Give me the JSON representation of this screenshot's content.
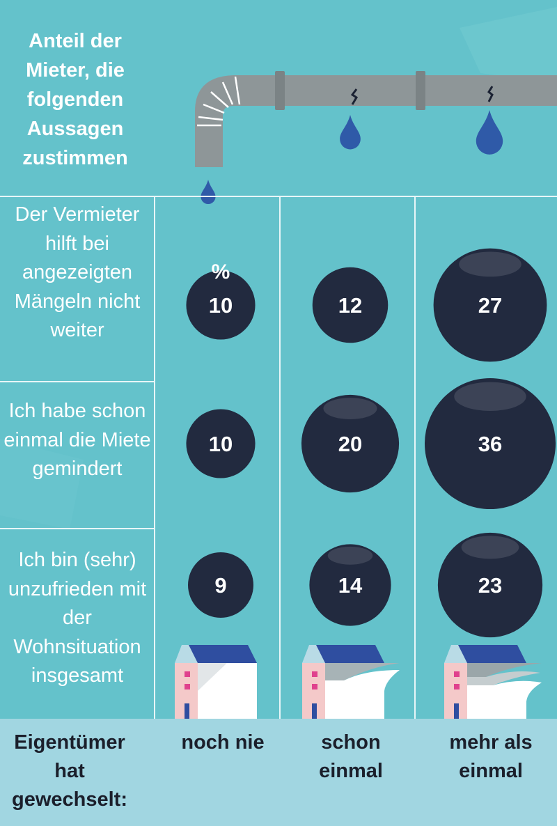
{
  "title": "Anteil der Mieter, die folgenden Aussagen zustimmen",
  "unit_label": "%",
  "footer": {
    "row_label": "Eigentümer hat gewechselt:",
    "columns": [
      "noch nie",
      "schon einmal",
      "mehr als einmal"
    ]
  },
  "colors": {
    "background": "#64c2cb",
    "bubble": "#222a3f",
    "drop": "#2f5aa8",
    "pipe": "#8e9698",
    "footer_band": "#a1d6e1"
  },
  "chart_data": {
    "type": "bubble-table",
    "title": "Anteil der Mieter, die folgenden Aussagen zustimmen",
    "unit": "%",
    "categories": [
      "noch nie",
      "schon einmal",
      "mehr als einmal"
    ],
    "category_axis_label": "Eigentümer hat gewechselt:",
    "series": [
      {
        "name": "Der Vermieter hilft bei angezeigten Mängeln nicht weiter",
        "values": [
          10,
          12,
          27
        ]
      },
      {
        "name": "Ich habe schon einmal die Miete gemindert",
        "values": [
          10,
          20,
          36
        ]
      },
      {
        "name": "Ich bin (sehr) unzufrieden mit der Wohnsituation insgesamt",
        "values": [
          9,
          14,
          23
        ]
      }
    ]
  }
}
